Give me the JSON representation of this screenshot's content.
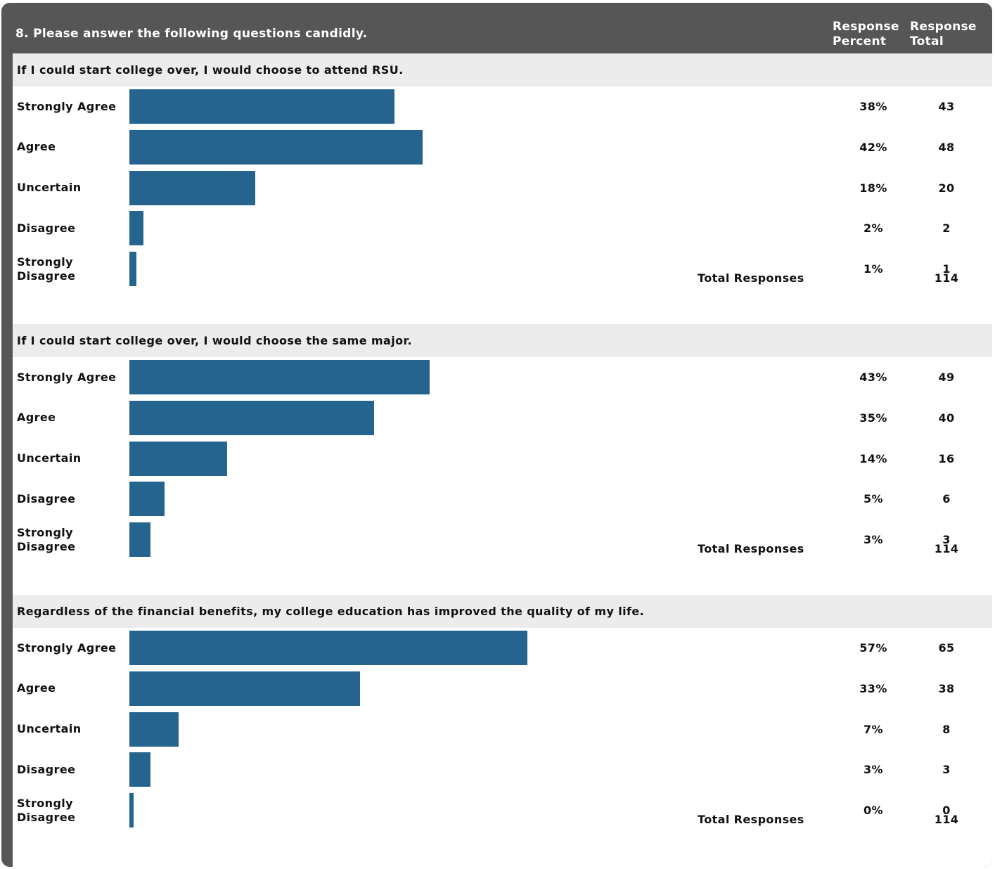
{
  "header": {
    "title": "8. Please answer the following questions candidly.",
    "col_percent_line1": "Response",
    "col_percent_line2": "Percent",
    "col_total_line1": "Response",
    "col_total_line2": "Total"
  },
  "colors": {
    "bar": "#25648f",
    "frame": "#565656",
    "question_bg": "#ececec"
  },
  "chart_data": [
    {
      "type": "bar",
      "orientation": "horizontal",
      "title": "If I could start college over, I would choose to attend RSU.",
      "categories": [
        "Strongly Agree",
        "Agree",
        "Uncertain",
        "Disagree",
        "Strongly Disagree"
      ],
      "values": [
        38,
        42,
        18,
        2,
        1
      ],
      "percent_labels": [
        "38%",
        "42%",
        "18%",
        "2%",
        "1%"
      ],
      "totals": [
        "43",
        "48",
        "20",
        "2",
        "1"
      ],
      "total_label": "Total Responses",
      "total_responses": "114",
      "xlim": [
        0,
        100
      ]
    },
    {
      "type": "bar",
      "orientation": "horizontal",
      "title": "If I could start college over, I would choose the same major.",
      "categories": [
        "Strongly Agree",
        "Agree",
        "Uncertain",
        "Disagree",
        "Strongly Disagree"
      ],
      "values": [
        43,
        35,
        14,
        5,
        3
      ],
      "percent_labels": [
        "43%",
        "35%",
        "14%",
        "5%",
        "3%"
      ],
      "totals": [
        "49",
        "40",
        "16",
        "6",
        "3"
      ],
      "total_label": "Total Responses",
      "total_responses": "114",
      "xlim": [
        0,
        100
      ]
    },
    {
      "type": "bar",
      "orientation": "horizontal",
      "title": "Regardless of the financial benefits, my college education has improved the quality of my life.",
      "categories": [
        "Strongly Agree",
        "Agree",
        "Uncertain",
        "Disagree",
        "Strongly Disagree"
      ],
      "values": [
        57,
        33,
        7,
        3,
        0
      ],
      "percent_labels": [
        "57%",
        "33%",
        "7%",
        "3%",
        "0%"
      ],
      "totals": [
        "65",
        "38",
        "8",
        "3",
        "0"
      ],
      "total_label": "Total Responses",
      "total_responses": "114",
      "xlim": [
        0,
        100
      ]
    }
  ]
}
